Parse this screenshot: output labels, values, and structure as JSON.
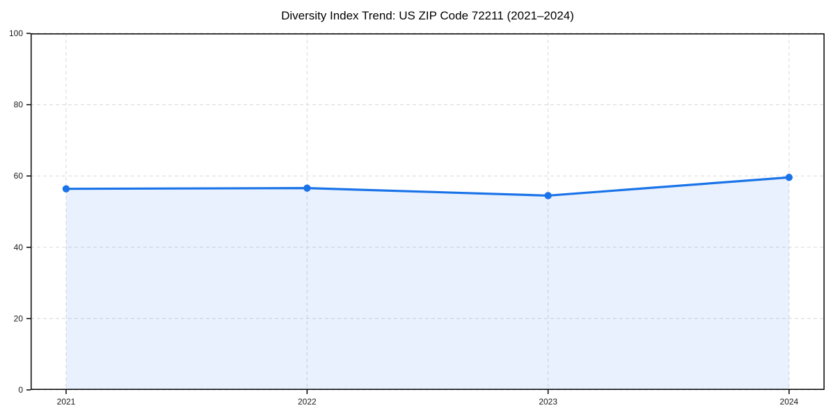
{
  "title": "Diversity Index Trend: US ZIP Code 72211 (2021–2024)",
  "chart_data": {
    "type": "line",
    "title": "Diversity Index Trend: US ZIP Code 72211 (2021–2024)",
    "x": [
      2021,
      2022,
      2023,
      2024
    ],
    "xtick_labels": [
      "2021",
      "2022",
      "2023",
      "2024"
    ],
    "series": [
      {
        "name": "Diversity Index",
        "values": [
          56.4,
          56.6,
          54.5,
          59.6
        ]
      }
    ],
    "xlabel": "",
    "ylabel": "",
    "ylim": [
      0,
      100
    ],
    "yticks": [
      0,
      20,
      40,
      60,
      80,
      100
    ],
    "grid": true,
    "grid_style": "dashed",
    "legend_position": "none",
    "line_color": "#1a73e8",
    "marker_color": "#1a73e8",
    "fill_color": "rgba(26,115,232,0.10)",
    "grid_color": "#dedede",
    "axis_color": "#000000",
    "background_color": "#ffffff"
  }
}
